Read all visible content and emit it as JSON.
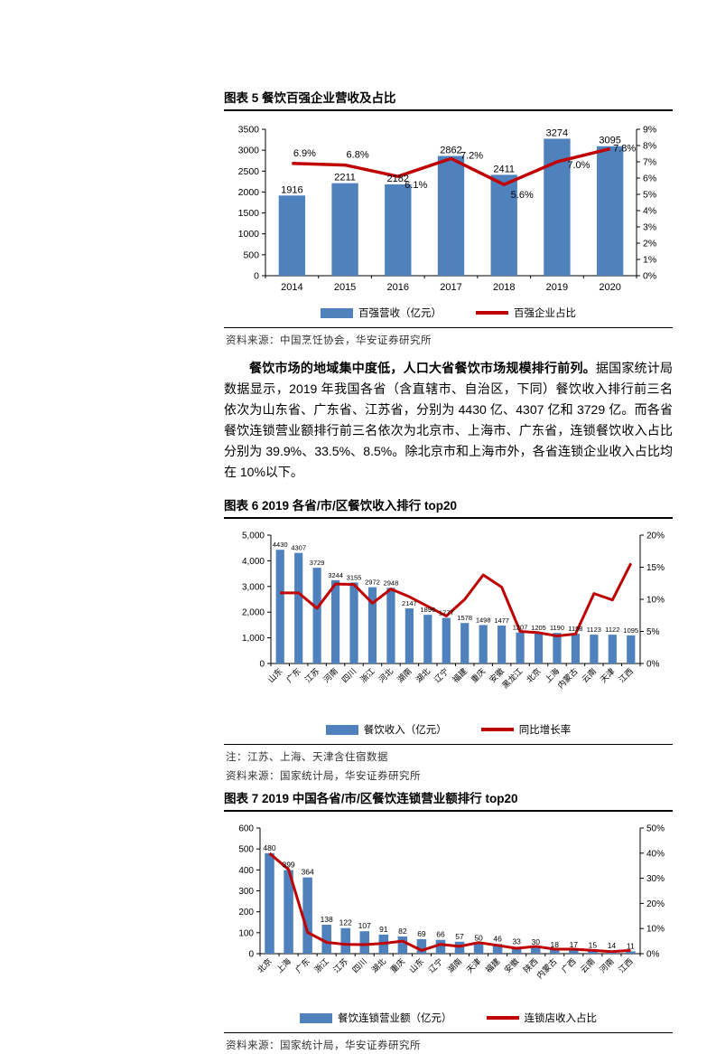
{
  "colors": {
    "bar": "#4F81BD",
    "line": "#C00000",
    "axis": "#000000"
  },
  "figures": {
    "fig5": {
      "title": "图表 5 餐饮百强企业营收及占比",
      "source": "资料来源：中国烹饪协会，华安证券研究所",
      "legend_bar": "百强营收（亿元）",
      "legend_line": "百强企业占比"
    },
    "fig6": {
      "title": "图表 6 2019 各省/市/区餐饮收入排行 top20",
      "note": "注：江苏、上海、天津含住宿数据",
      "source": "资料来源：国家统计局，华安证券研究所",
      "legend_bar": "餐饮收入（亿元）",
      "legend_line": "同比增长率"
    },
    "fig7": {
      "title": "图表 7 2019 中国各省/市/区餐饮连锁营业额排行 top20",
      "source": "资料来源：国家统计局，华安证券研究所",
      "legend_bar": "餐饮连锁营业额（亿元）",
      "legend_line": "连锁店收入占比"
    }
  },
  "paragraph": {
    "lead": "餐饮市场的地域集中度低，人口大省餐饮市场规模排行前列。",
    "body": "据国家统计局数据显示，2019 年我国各省（含直辖市、自治区，下同）餐饮收入排行前三名依次为山东省、广东省、江苏省，分别为 4430 亿、4307 亿和 3729 亿。而各省餐饮连锁营业额排行前三名依次为北京市、上海市、广东省，连锁餐饮收入占比分别为 39.9%、33.5%、8.5%。除北京市和上海市外，各省连锁企业收入占比均在 10%以下。"
  },
  "chart_data": [
    {
      "id": "fig5",
      "type": "bar",
      "title": "图表 5 餐饮百强企业营收及占比",
      "categories": [
        "2014",
        "2015",
        "2016",
        "2017",
        "2018",
        "2019",
        "2020"
      ],
      "series": [
        {
          "name": "百强营收（亿元）",
          "type": "bar",
          "axis": "left",
          "values": [
            1916,
            2211,
            2182,
            2862,
            2411,
            3274,
            3095
          ]
        },
        {
          "name": "百强企业占比",
          "type": "line",
          "axis": "right",
          "values": [
            6.9,
            6.8,
            6.1,
            7.2,
            5.6,
            7.0,
            7.8
          ],
          "point_labels": [
            "6.9%",
            "6.8%",
            "6.1%",
            "7.2%",
            "5.6%",
            "7.0%",
            "7.8%"
          ]
        }
      ],
      "left_axis": {
        "min": 0,
        "max": 3500,
        "tick_labels": [
          "0",
          "500",
          "1000",
          "1500",
          "2000",
          "2500",
          "3000",
          "3500"
        ]
      },
      "right_axis": {
        "min": 0,
        "max": 9,
        "tick_labels": [
          "0%",
          "1%",
          "2%",
          "3%",
          "4%",
          "5%",
          "6%",
          "7%",
          "8%",
          "9%"
        ]
      },
      "x_label_rotation": 0,
      "grid": false,
      "legend_position": "bottom"
    },
    {
      "id": "fig6",
      "type": "bar",
      "title": "图表 6 2019 各省/市/区餐饮收入排行 top20",
      "categories": [
        "山东",
        "广东",
        "江苏",
        "河南",
        "四川",
        "浙江",
        "河北",
        "湖南",
        "湖北",
        "辽宁",
        "福建",
        "重庆",
        "安徽",
        "黑龙江",
        "北京",
        "上海",
        "内蒙古",
        "云南",
        "天津",
        "江西"
      ],
      "series": [
        {
          "name": "餐饮收入（亿元）",
          "type": "bar",
          "axis": "left",
          "values": [
            4430,
            4307,
            3729,
            3244,
            3155,
            2972,
            2948,
            2147,
            1896,
            1777,
            1578,
            1498,
            1477,
            1207,
            1205,
            1190,
            1158,
            1123,
            1122,
            1095
          ]
        },
        {
          "name": "同比增长率",
          "type": "line",
          "axis": "right",
          "values": [
            11.0,
            11.0,
            8.6,
            12.4,
            12.3,
            9.4,
            11.6,
            10.4,
            8.9,
            7.4,
            10.0,
            13.8,
            11.9,
            5.0,
            4.8,
            4.3,
            4.6,
            10.9,
            9.9,
            15.6
          ],
          "values_estimated": true
        }
      ],
      "left_axis": {
        "min": 0,
        "max": 5000,
        "tick_labels": [
          "0",
          "1,000",
          "2,000",
          "3,000",
          "4,000",
          "5,000"
        ]
      },
      "right_axis": {
        "min": 0,
        "max": 20,
        "tick_labels": [
          "0%",
          "5%",
          "10%",
          "15%",
          "20%"
        ]
      },
      "x_label_rotation": -45,
      "grid": false,
      "legend_position": "bottom"
    },
    {
      "id": "fig7",
      "type": "bar",
      "title": "图表 7 2019 中国各省/市/区餐饮连锁营业额排行 top20",
      "categories": [
        "北京",
        "上海",
        "广东",
        "浙江",
        "江苏",
        "四川",
        "湖北",
        "重庆",
        "山东",
        "辽宁",
        "湖南",
        "天津",
        "福建",
        "安徽",
        "陕西",
        "内蒙古",
        "广西",
        "云南",
        "河南",
        "江西"
      ],
      "series": [
        {
          "name": "餐饮连锁营业额（亿元）",
          "type": "bar",
          "axis": "left",
          "values": [
            480,
            399,
            364,
            138,
            122,
            107,
            91,
            82,
            69,
            66,
            57,
            50,
            46,
            33,
            30,
            18,
            17,
            15,
            14,
            11
          ]
        },
        {
          "name": "连锁店收入占比",
          "type": "line",
          "axis": "right",
          "values": [
            39.9,
            33.5,
            8.5,
            4.5,
            3.7,
            3.6,
            4.1,
            5.0,
            1.3,
            3.7,
            2.9,
            4.4,
            3.3,
            2.1,
            2.9,
            1.8,
            1.8,
            1.3,
            0.8,
            1.3
          ],
          "values_estimated": true
        }
      ],
      "left_axis": {
        "min": 0,
        "max": 600,
        "tick_labels": [
          "0",
          "100",
          "200",
          "300",
          "400",
          "500",
          "600"
        ]
      },
      "right_axis": {
        "min": 0,
        "max": 50,
        "tick_labels": [
          "0%",
          "10%",
          "20%",
          "30%",
          "40%",
          "50%"
        ]
      },
      "x_label_rotation": -45,
      "grid": false,
      "legend_position": "bottom"
    }
  ]
}
